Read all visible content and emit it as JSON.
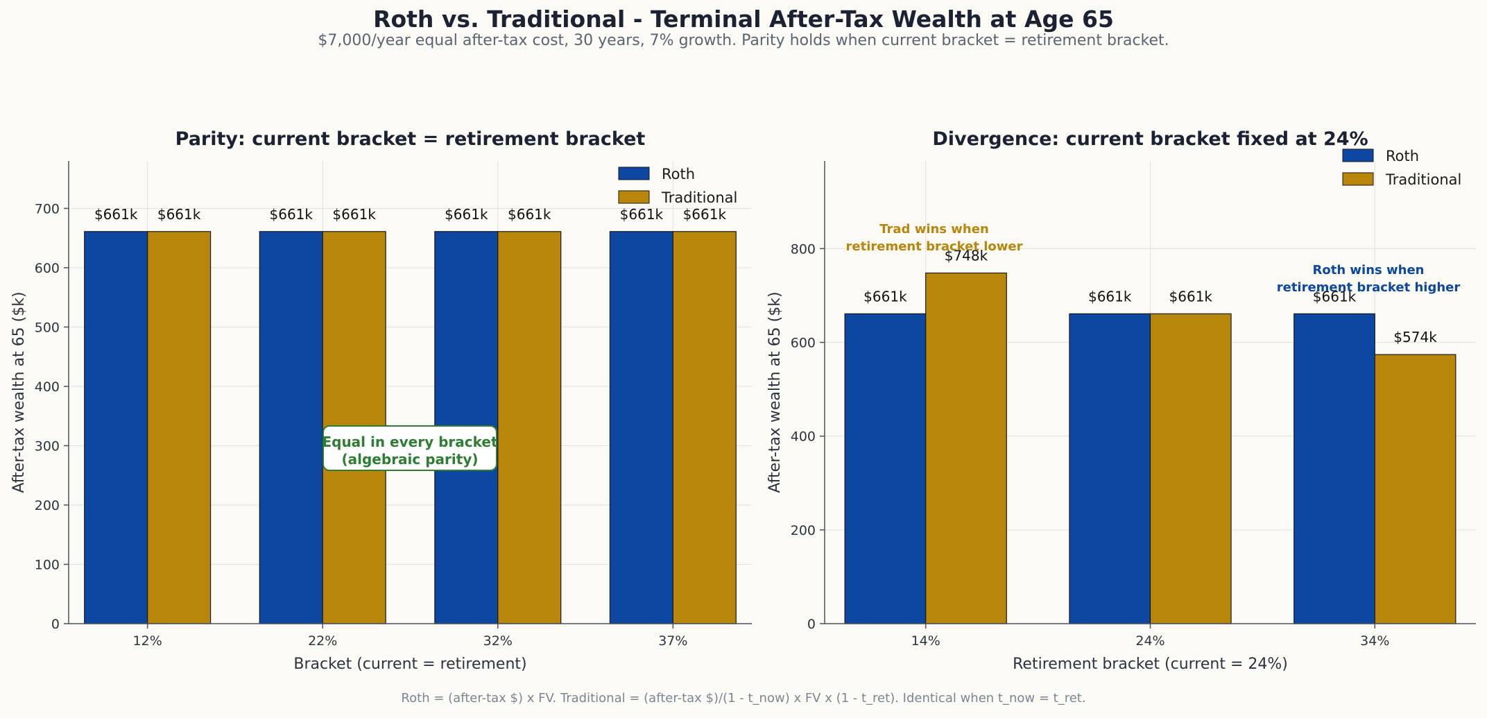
{
  "title": "Roth vs. Traditional - Terminal After-Tax Wealth at Age 65",
  "subtitle": "$7,000/year equal after-tax cost, 30 years, 7% growth. Parity holds when current bracket = retirement bracket.",
  "footer": "Roth = (after-tax $) x FV. Traditional = (after-tax $)/(1 - t_now) x FV x (1 - t_ret). Identical when t_now = t_ret.",
  "colors": {
    "roth": "#0e47a1",
    "traditional": "#b8860b",
    "parity_note": "#2e7d32",
    "trad_note": "#b8860b",
    "roth_note": "#0d47a1"
  },
  "chart_data": [
    {
      "type": "bar",
      "title": "Parity: current bracket = retirement bracket",
      "xlabel": "Bracket (current = retirement)",
      "ylabel": "After-tax wealth at 65 ($k)",
      "categories": [
        "12%",
        "22%",
        "32%",
        "37%"
      ],
      "series": [
        {
          "name": "Roth",
          "values": [
            661,
            661,
            661,
            661
          ]
        },
        {
          "name": "Traditional",
          "values": [
            661,
            661,
            661,
            661
          ]
        }
      ],
      "data_labels": [
        [
          "$661k",
          "$661k",
          "$661k",
          "$661k"
        ],
        [
          "$661k",
          "$661k",
          "$661k",
          "$661k"
        ]
      ],
      "ylim": [
        0,
        780
      ],
      "yticks": [
        0,
        100,
        200,
        300,
        400,
        500,
        600,
        700
      ],
      "grid": true,
      "legend": "top-right",
      "annotations": [
        {
          "text": [
            "Equal in every bracket",
            "(algebraic parity)"
          ],
          "color": "parity_note",
          "boxed": true
        }
      ]
    },
    {
      "type": "bar",
      "title": "Divergence: current bracket fixed at 24%",
      "xlabel": "Retirement bracket (current = 24%)",
      "ylabel": "After-tax wealth at 65 ($k)",
      "categories": [
        "14%",
        "24%",
        "34%"
      ],
      "series": [
        {
          "name": "Roth",
          "values": [
            661,
            661,
            661
          ]
        },
        {
          "name": "Traditional",
          "values": [
            748,
            661,
            574
          ]
        }
      ],
      "data_labels": [
        [
          "$661k",
          "$661k",
          "$661k"
        ],
        [
          "$748k",
          "$661k",
          "$574k"
        ]
      ],
      "ylim": [
        0,
        987
      ],
      "yticks": [
        0,
        200,
        400,
        600,
        800
      ],
      "grid": true,
      "legend": "top-right",
      "annotations": [
        {
          "text": [
            "Trad wins when",
            "retirement bracket lower"
          ],
          "color": "trad_note"
        },
        {
          "text": [
            "Roth wins when",
            "retirement bracket higher"
          ],
          "color": "roth_note"
        }
      ]
    }
  ]
}
